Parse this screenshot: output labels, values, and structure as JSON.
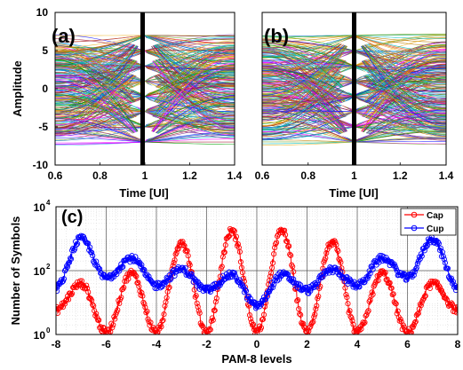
{
  "chart_data": [
    {
      "type": "line",
      "panel_label": "(a)",
      "xlabel": "Time [UI]",
      "ylabel": "Amplitude",
      "xlim": [
        0.6,
        1.4
      ],
      "ylim": [
        -10,
        10
      ],
      "xticks": [
        0.6,
        0.8,
        1,
        1.2,
        1.4
      ],
      "yticks": [
        -10,
        -5,
        0,
        5,
        10
      ],
      "levels": [
        -7,
        -5,
        -3,
        -1,
        1,
        3,
        5,
        7
      ],
      "sampling_instant": 1,
      "trace_count": 300,
      "grid": false
    },
    {
      "type": "line",
      "panel_label": "(b)",
      "xlabel": "Time [UI]",
      "ylabel": "",
      "xlim": [
        0.6,
        1.4
      ],
      "ylim": [
        -10,
        10
      ],
      "xticks": [
        0.6,
        0.8,
        1,
        1.2,
        1.4
      ],
      "yticks": [
        -10,
        -5,
        0,
        5,
        10
      ],
      "levels": [
        -7,
        -5,
        -3,
        -1,
        1,
        3,
        5,
        7
      ],
      "sampling_instant": 1,
      "trace_count": 300,
      "grid": false
    },
    {
      "type": "line",
      "panel_label": "(c)",
      "xlabel": "PAM-8 levels",
      "ylabel": "Number of Symbols",
      "xlim": [
        -8,
        8
      ],
      "ylim": [
        1,
        10000
      ],
      "yscale": "log",
      "xticks": [
        -8,
        -6,
        -4,
        -2,
        0,
        2,
        4,
        6,
        8
      ],
      "yticks": [
        1,
        100,
        10000
      ],
      "ytick_labels": [
        [
          "10",
          "0"
        ],
        [
          "10",
          "2"
        ],
        [
          "10",
          "4"
        ]
      ],
      "grid": true,
      "legend_position": "top-right",
      "series": [
        {
          "name": "Cap",
          "color": "#ff0000",
          "marker": "circle",
          "peaks": [
            {
              "x": -7,
              "y": 40
            },
            {
              "x": -5,
              "y": 85
            },
            {
              "x": -3,
              "y": 800
            },
            {
              "x": -1,
              "y": 1800
            },
            {
              "x": 1,
              "y": 1800
            },
            {
              "x": 3,
              "y": 800
            },
            {
              "x": 5,
              "y": 85
            },
            {
              "x": 7,
              "y": 40
            }
          ],
          "valleys": [
            {
              "x": -8,
              "y": 6
            },
            {
              "x": -6,
              "y": 1.2
            },
            {
              "x": -4,
              "y": 1.2
            },
            {
              "x": -2,
              "y": 1.2
            },
            {
              "x": 0,
              "y": 1.2
            },
            {
              "x": 2,
              "y": 1.2
            },
            {
              "x": 4,
              "y": 1.2
            },
            {
              "x": 6,
              "y": 1.2
            },
            {
              "x": 8,
              "y": 6
            }
          ]
        },
        {
          "name": "Cup",
          "color": "#0000ff",
          "marker": "circle",
          "peaks": [
            {
              "x": -7,
              "y": 1000
            },
            {
              "x": -5,
              "y": 250
            },
            {
              "x": -3,
              "y": 110
            },
            {
              "x": -1,
              "y": 75
            },
            {
              "x": 1,
              "y": 75
            },
            {
              "x": 3,
              "y": 110
            },
            {
              "x": 5,
              "y": 250
            },
            {
              "x": 7,
              "y": 1000
            }
          ],
          "valleys": [
            {
              "x": -8,
              "y": 30
            },
            {
              "x": -6,
              "y": 60
            },
            {
              "x": -4,
              "y": 35
            },
            {
              "x": -2,
              "y": 25
            },
            {
              "x": 0,
              "y": 8
            },
            {
              "x": 2,
              "y": 25
            },
            {
              "x": 4,
              "y": 35
            },
            {
              "x": 6,
              "y": 60
            },
            {
              "x": 8,
              "y": 30
            }
          ]
        }
      ]
    }
  ]
}
